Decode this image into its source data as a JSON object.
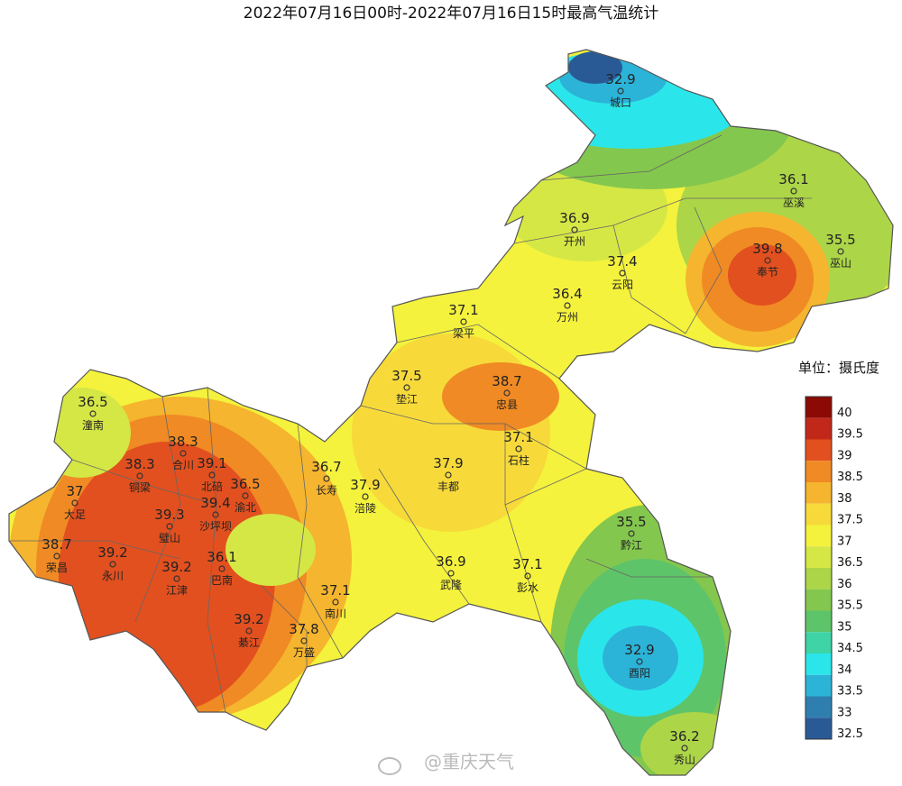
{
  "title": "2022年07月16日00时-2022年07月16日15时最高气温统计",
  "stations": [
    {
      "name": "城口",
      "value": 32.9
    },
    {
      "name": "巫溪",
      "value": 36.1
    },
    {
      "name": "开州",
      "value": 36.9
    },
    {
      "name": "巫山",
      "value": 35.5
    },
    {
      "name": "奉节",
      "value": 39.8
    },
    {
      "name": "云阳",
      "value": 37.4
    },
    {
      "name": "万州",
      "value": 36.4
    },
    {
      "name": "梁平",
      "value": 37.1
    },
    {
      "name": "垫江",
      "value": 37.5
    },
    {
      "name": "忠县",
      "value": 38.7
    },
    {
      "name": "潼南",
      "value": 36.5
    },
    {
      "name": "石柱",
      "value": 37.1
    },
    {
      "name": "合川",
      "value": 38.3
    },
    {
      "name": "北碚",
      "value": 39.1
    },
    {
      "name": "铜梁",
      "value": 38.3
    },
    {
      "name": "渝北",
      "value": 36.5
    },
    {
      "name": "长寿",
      "value": 36.7
    },
    {
      "name": "涪陵",
      "value": 37.9
    },
    {
      "name": "丰都",
      "value": 37.9
    },
    {
      "name": "大足",
      "value": 37
    },
    {
      "name": "璧山",
      "value": 39.3
    },
    {
      "name": "沙坪坝",
      "value": 39.4
    },
    {
      "name": "荣昌",
      "value": 38.7
    },
    {
      "name": "永川",
      "value": 39.2
    },
    {
      "name": "巴南",
      "value": 36.1
    },
    {
      "name": "江津",
      "value": 39.2
    },
    {
      "name": "黔江",
      "value": 35.5
    },
    {
      "name": "武隆",
      "value": 36.9
    },
    {
      "name": "彭水",
      "value": 37.1
    },
    {
      "name": "南川",
      "value": 37.1
    },
    {
      "name": "綦江",
      "value": 39.2
    },
    {
      "name": "万盛",
      "value": 37.8
    },
    {
      "name": "酉阳",
      "value": 32.9
    },
    {
      "name": "秀山",
      "value": 36.2
    }
  ],
  "legend": {
    "title": "单位：摄氏度",
    "levels": [
      {
        "value": 40,
        "color": "#8b0a05"
      },
      {
        "value": 39.5,
        "color": "#c2281a"
      },
      {
        "value": 39,
        "color": "#e2501f"
      },
      {
        "value": 38.5,
        "color": "#f08a24"
      },
      {
        "value": 38,
        "color": "#f5b52e"
      },
      {
        "value": 37.5,
        "color": "#f7da3a"
      },
      {
        "value": 37,
        "color": "#f4f23c"
      },
      {
        "value": 36.5,
        "color": "#d5e745"
      },
      {
        "value": 36,
        "color": "#acd548"
      },
      {
        "value": 35.5,
        "color": "#84c74e"
      },
      {
        "value": 35,
        "color": "#5ec46a"
      },
      {
        "value": 34.5,
        "color": "#3ed4a6"
      },
      {
        "value": 34,
        "color": "#2ae6ea"
      },
      {
        "value": 33.5,
        "color": "#2cb3d8"
      },
      {
        "value": 33,
        "color": "#2e7fb0"
      },
      {
        "value": 32.5,
        "color": "#2a5a96"
      }
    ]
  },
  "watermark": "@重庆天气"
}
